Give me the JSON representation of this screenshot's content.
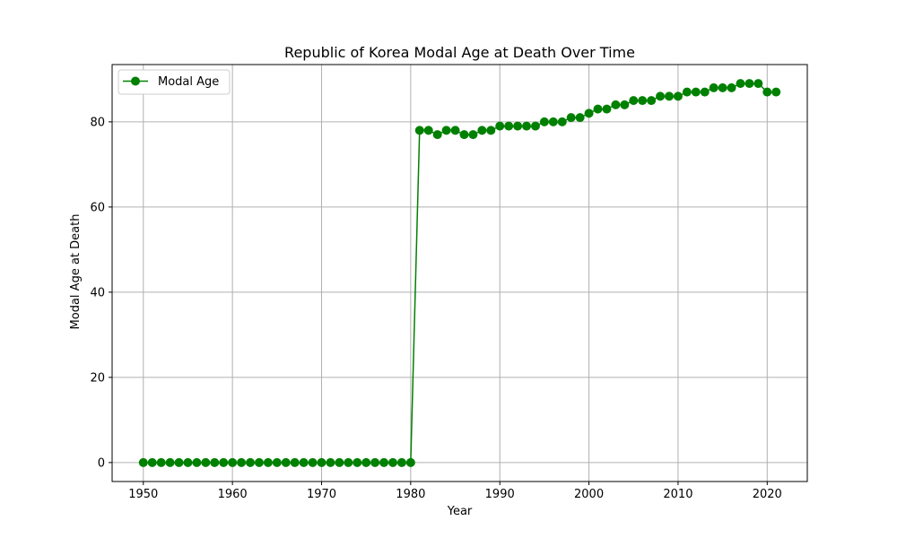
{
  "chart_data": {
    "type": "line",
    "title": "Republic of Korea Modal Age at Death Over Time",
    "xlabel": "Year",
    "ylabel": "Modal Age at Death",
    "xlim": [
      1946.5,
      2024.5
    ],
    "ylim": [
      -4.45,
      93.45
    ],
    "x_ticks": [
      1950,
      1960,
      1970,
      1980,
      1990,
      2000,
      2010,
      2020
    ],
    "y_ticks": [
      0,
      20,
      40,
      60,
      80
    ],
    "grid": true,
    "legend_position": "top-left",
    "series": [
      {
        "name": "Modal Age",
        "color": "#008000",
        "marker": "circle",
        "x": [
          1950,
          1951,
          1952,
          1953,
          1954,
          1955,
          1956,
          1957,
          1958,
          1959,
          1960,
          1961,
          1962,
          1963,
          1964,
          1965,
          1966,
          1967,
          1968,
          1969,
          1970,
          1971,
          1972,
          1973,
          1974,
          1975,
          1976,
          1977,
          1978,
          1979,
          1980,
          1981,
          1982,
          1983,
          1984,
          1985,
          1986,
          1987,
          1988,
          1989,
          1990,
          1991,
          1992,
          1993,
          1994,
          1995,
          1996,
          1997,
          1998,
          1999,
          2000,
          2001,
          2002,
          2003,
          2004,
          2005,
          2006,
          2007,
          2008,
          2009,
          2010,
          2011,
          2012,
          2013,
          2014,
          2015,
          2016,
          2017,
          2018,
          2019,
          2020,
          2021
        ],
        "y": [
          0,
          0,
          0,
          0,
          0,
          0,
          0,
          0,
          0,
          0,
          0,
          0,
          0,
          0,
          0,
          0,
          0,
          0,
          0,
          0,
          0,
          0,
          0,
          0,
          0,
          0,
          0,
          0,
          0,
          0,
          0,
          78,
          78,
          77,
          78,
          78,
          77,
          77,
          78,
          78,
          79,
          79,
          79,
          79,
          79,
          80,
          80,
          80,
          81,
          81,
          82,
          83,
          83,
          84,
          84,
          85,
          85,
          85,
          86,
          86,
          86,
          87,
          87,
          87,
          88,
          88,
          88,
          89,
          89,
          89,
          87,
          87
        ]
      }
    ]
  }
}
